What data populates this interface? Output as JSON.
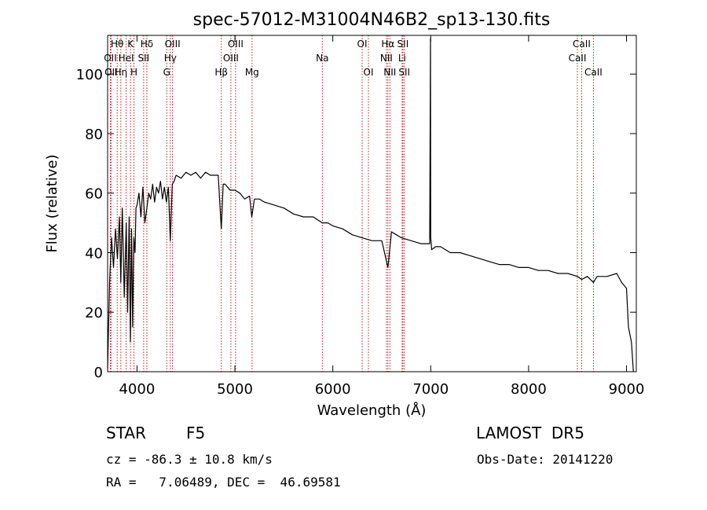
{
  "chart_data": {
    "type": "line",
    "title": "spec-57012-M31004N46B2_sp13-130.fits",
    "xlabel": "Wavelength (Å)",
    "ylabel": "Flux (relative)",
    "xlim": [
      3700,
      9100
    ],
    "ylim": [
      0,
      113
    ],
    "xticks": [
      4000,
      5000,
      6000,
      7000,
      8000,
      9000
    ],
    "yticks": [
      0,
      20,
      40,
      60,
      80,
      100
    ],
    "grid": false,
    "line_color": "#000000",
    "marker_color": "#b22222",
    "series": [
      {
        "x": [
          3700,
          3720,
          3740,
          3760,
          3780,
          3800,
          3820,
          3835,
          3850,
          3870,
          3890,
          3905,
          3920,
          3933,
          3945,
          3955,
          3968,
          3980,
          3990,
          4000,
          4020,
          4040,
          4060,
          4080,
          4101,
          4120,
          4140,
          4160,
          4180,
          4200,
          4220,
          4240,
          4260,
          4280,
          4300,
          4320,
          4340,
          4360,
          4380,
          4400,
          4450,
          4500,
          4550,
          4600,
          4650,
          4700,
          4750,
          4800,
          4830,
          4861,
          4880,
          4900,
          4950,
          5000,
          5050,
          5100,
          5150,
          5172,
          5200,
          5250,
          5300,
          5400,
          5500,
          5600,
          5700,
          5800,
          5893,
          5950,
          6000,
          6100,
          6200,
          6300,
          6400,
          6500,
          6563,
          6600,
          6650,
          6700,
          6800,
          6900,
          6990,
          6998,
          7000,
          7010,
          7050,
          7100,
          7200,
          7300,
          7400,
          7500,
          7600,
          7700,
          7800,
          7900,
          8000,
          8100,
          8200,
          8300,
          8400,
          8500,
          8542,
          8600,
          8662,
          8700,
          8800,
          8900,
          8950,
          9000,
          9020,
          9050,
          9070
        ],
        "y": [
          1,
          30,
          45,
          35,
          48,
          38,
          52,
          30,
          55,
          25,
          50,
          20,
          52,
          10,
          48,
          15,
          45,
          40,
          55,
          56,
          60,
          52,
          62,
          50,
          55,
          60,
          58,
          63,
          57,
          62,
          60,
          64,
          58,
          62,
          57,
          62,
          44,
          63,
          64,
          66,
          65,
          67,
          66,
          67,
          65,
          67,
          66,
          66,
          66,
          48,
          63,
          63,
          61,
          61,
          60,
          58,
          59,
          52,
          58,
          58,
          57,
          56,
          55,
          53,
          52,
          52,
          50,
          50,
          49,
          48,
          46,
          45,
          44,
          44,
          35,
          47,
          46,
          45,
          44,
          43,
          43,
          112,
          45,
          41,
          42,
          42,
          40,
          40,
          39,
          38,
          37,
          36,
          36,
          35,
          35,
          34,
          34,
          33,
          33,
          32,
          31,
          32,
          30,
          32,
          32,
          33,
          30,
          28,
          15,
          10,
          0
        ]
      }
    ],
    "markers": [
      {
        "x": 3728,
        "label": "OII",
        "row": 1
      },
      {
        "x": 3735,
        "label": "OII",
        "row": 2
      },
      {
        "x": 3798,
        "label": "Hθ",
        "row": 0
      },
      {
        "x": 3835,
        "label": "Hη",
        "row": 2
      },
      {
        "x": 3889,
        "label": "HeI",
        "row": 1
      },
      {
        "x": 3934,
        "label": "K",
        "row": 0
      },
      {
        "x": 3969,
        "label": "H",
        "row": 2
      },
      {
        "x": 4068,
        "label": "SII",
        "row": 1
      },
      {
        "x": 4101,
        "label": "Hδ",
        "row": 0
      },
      {
        "x": 4304,
        "label": "G",
        "row": 2
      },
      {
        "x": 4340,
        "label": "Hγ",
        "row": 1
      },
      {
        "x": 4363,
        "label": "OIII",
        "row": 0
      },
      {
        "x": 4861,
        "label": "Hβ",
        "row": 2
      },
      {
        "x": 4959,
        "label": "OIII",
        "row": 1
      },
      {
        "x": 5007,
        "label": "OIII",
        "row": 0
      },
      {
        "x": 5175,
        "label": "Mg",
        "row": 2
      },
      {
        "x": 5893,
        "label": "Na",
        "row": 1
      },
      {
        "x": 6300,
        "label": "OI",
        "row": 0
      },
      {
        "x": 6364,
        "label": "OI",
        "row": 2
      },
      {
        "x": 6548,
        "label": "NII",
        "row": 1
      },
      {
        "x": 6563,
        "label": "Hα",
        "row": 0
      },
      {
        "x": 6583,
        "label": "NII",
        "row": 2
      },
      {
        "x": 6708,
        "label": "Li",
        "row": 1
      },
      {
        "x": 6716,
        "label": "SII",
        "row": 0
      },
      {
        "x": 6731,
        "label": "SII",
        "row": 2
      },
      {
        "x": 8498,
        "label": "CaII",
        "row": 1
      },
      {
        "x": 8542,
        "label": "CaII",
        "row": 0
      },
      {
        "x": 8662,
        "label": "CaII",
        "row": 2
      }
    ]
  },
  "footer": {
    "object_class": "STAR",
    "subclass": "F5",
    "survey": "LAMOST  DR5",
    "cz": "cz = -86.3 ± 10.8 km/s",
    "obs_date": "Obs-Date: 20141220",
    "coords": "RA =   7.06489, DEC =  46.69581"
  }
}
